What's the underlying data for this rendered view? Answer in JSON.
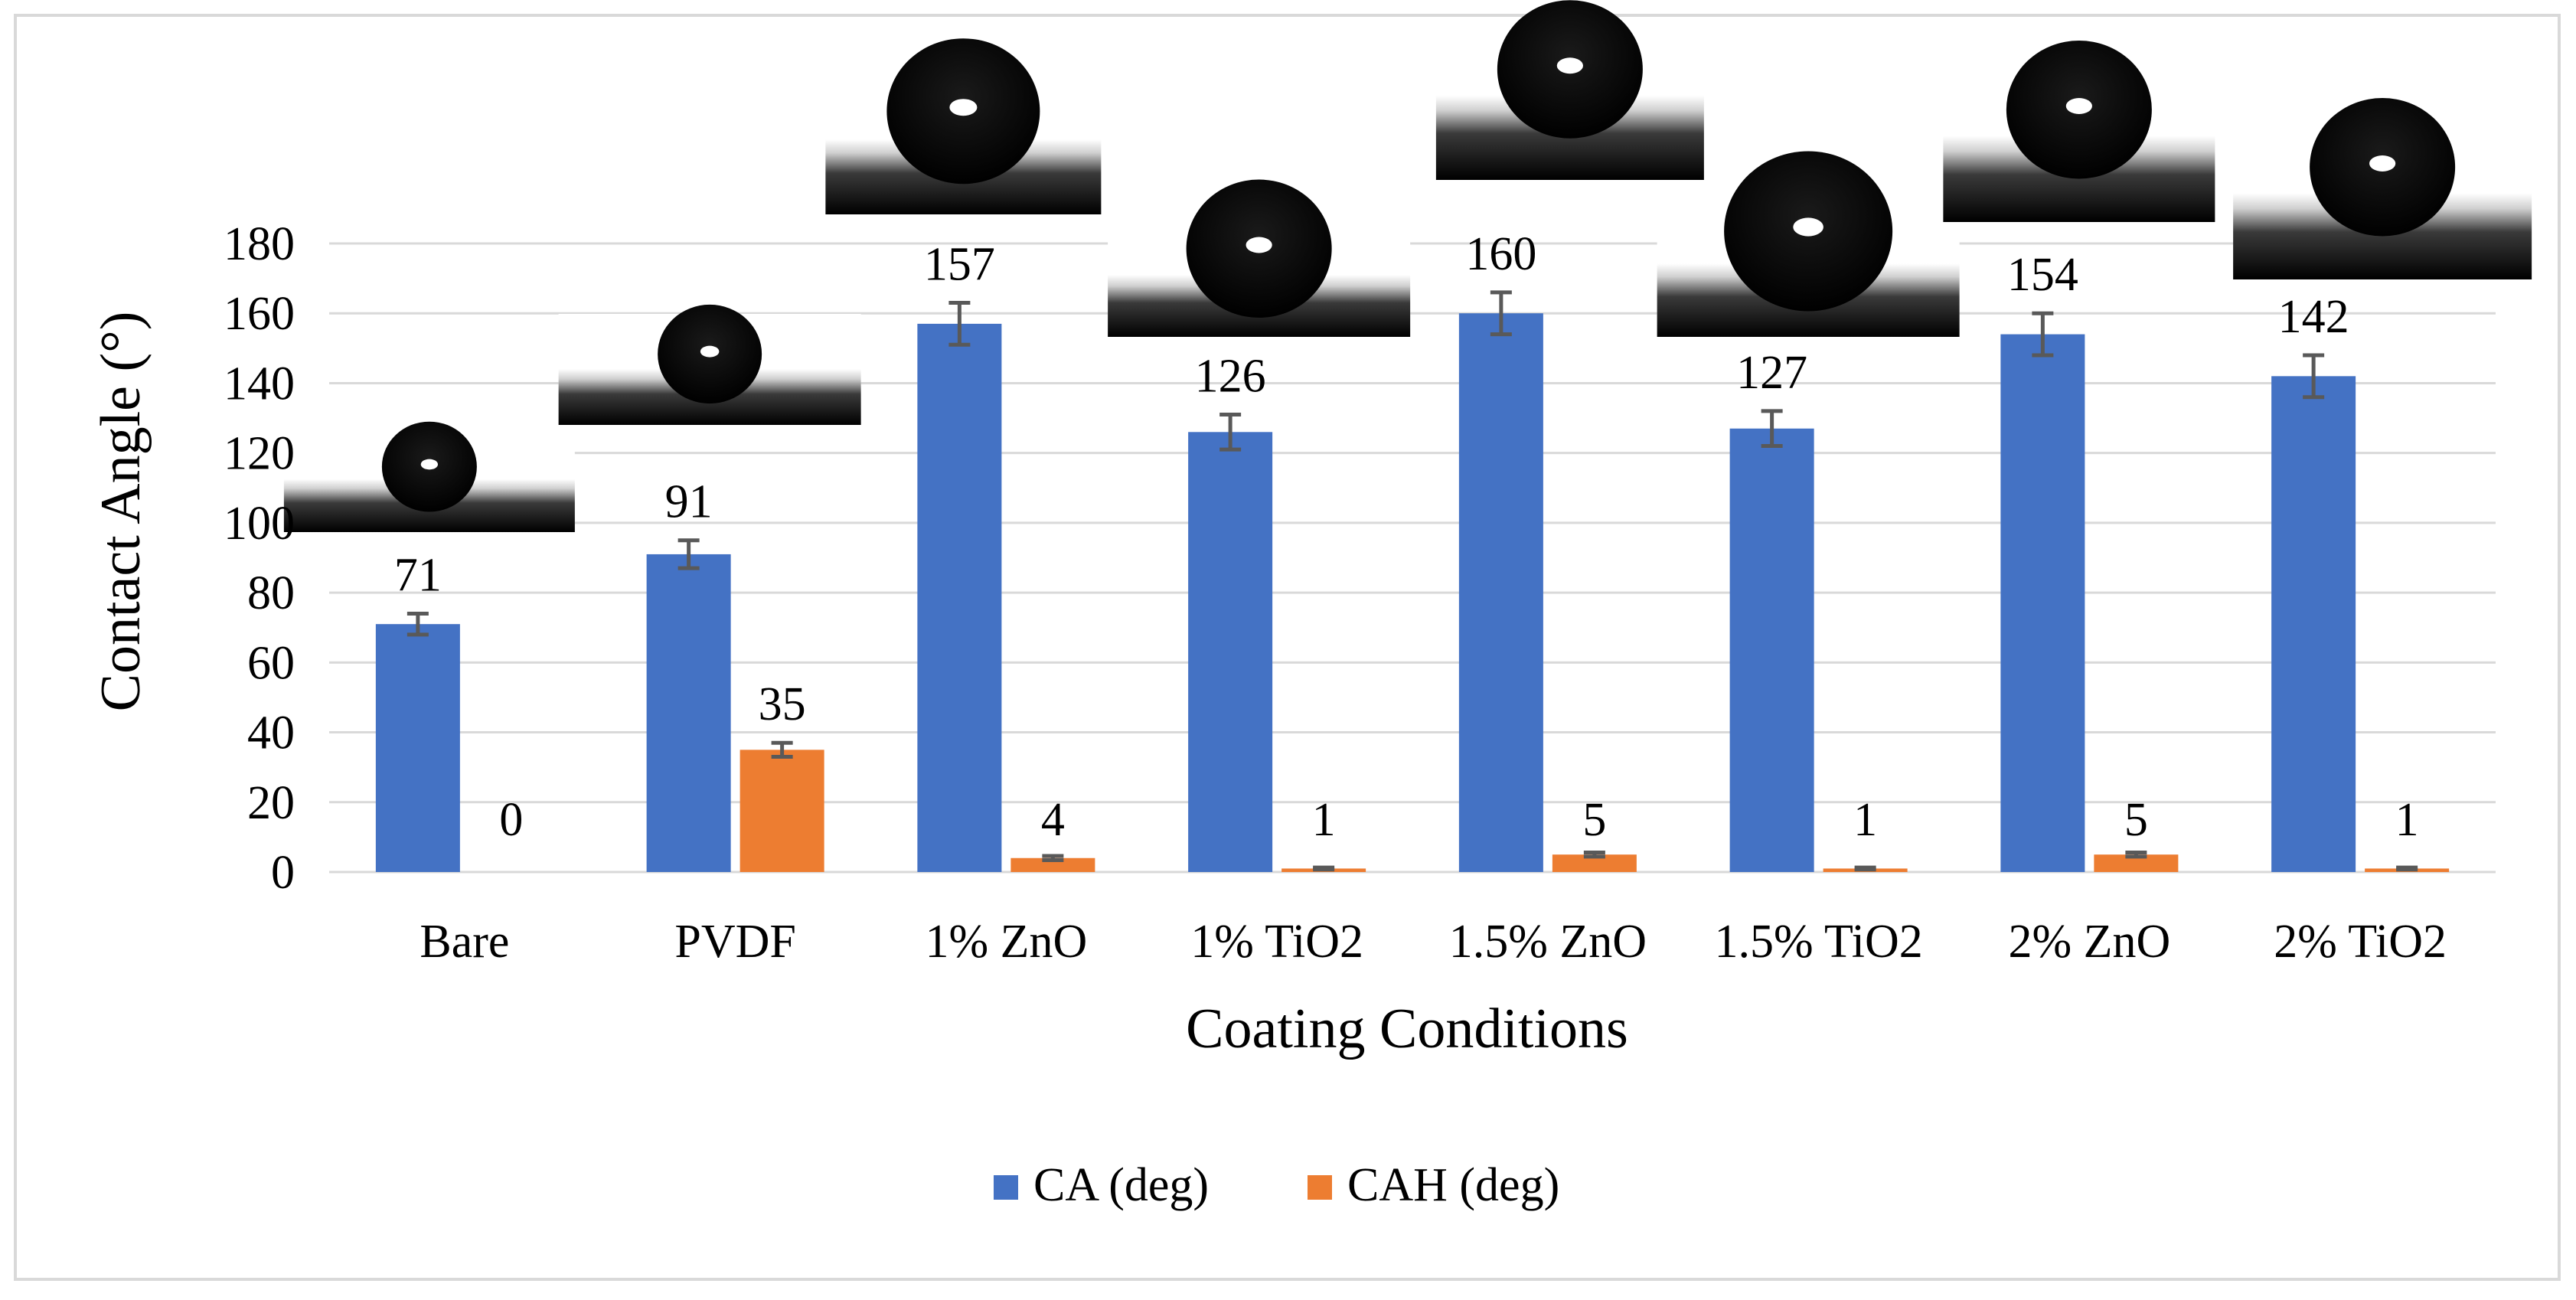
{
  "chart_data": {
    "type": "bar",
    "title": "",
    "xlabel": "Coating Conditions",
    "ylabel": "Contact Angle (°)",
    "ylim": [
      0,
      180
    ],
    "yticks": [
      0,
      20,
      40,
      60,
      80,
      100,
      120,
      140,
      160,
      180
    ],
    "grid": true,
    "legend_position": "bottom",
    "categories": [
      "Bare",
      "PVDF",
      "1% ZnO",
      "1% TiO2",
      "1.5% ZnO",
      "1.5% TiO2",
      "2% ZnO",
      "2% TiO2"
    ],
    "series": [
      {
        "name": "CA (deg)",
        "color": "#4472c4",
        "values": [
          71,
          91,
          157,
          126,
          160,
          127,
          154,
          142
        ],
        "errors": [
          3,
          4,
          6,
          5,
          6,
          5,
          6,
          6
        ]
      },
      {
        "name": "CAH (deg)",
        "color": "#ed7d31",
        "values": [
          0,
          35,
          4,
          1,
          5,
          1,
          5,
          1
        ],
        "errors": [
          0,
          2,
          0.6,
          0.3,
          0.6,
          0.3,
          0.6,
          0.3
        ]
      }
    ],
    "annotations": "Droplet contact-angle photographs shown above each CA bar"
  },
  "colors": {
    "gridline": "#d9d9d9",
    "errorbar": "#595959",
    "frame": "#d9d9d9"
  }
}
